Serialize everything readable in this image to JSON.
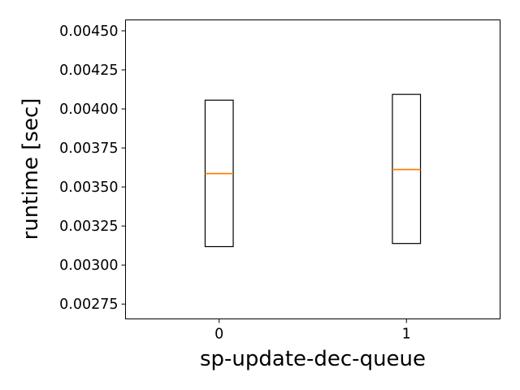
{
  "chart_data": {
    "type": "box",
    "title": "",
    "xlabel": "sp-update-dec-queue",
    "ylabel": "runtime [sec]",
    "categories": [
      "0",
      "1"
    ],
    "boxes": [
      {
        "category": "0",
        "q1": 0.003118,
        "median": 0.003586,
        "q3": 0.004056
      },
      {
        "category": "1",
        "q1": 0.003138,
        "median": 0.003612,
        "q3": 0.004093
      }
    ],
    "ylim": [
      0.002655,
      0.00457
    ],
    "yticks": [
      0.00275,
      0.003,
      0.00325,
      0.0035,
      0.00375,
      0.004,
      0.00425,
      0.0045
    ],
    "ytick_labels": [
      "0.00275",
      "0.00300",
      "0.00325",
      "0.00350",
      "0.00375",
      "0.00400",
      "0.00425",
      "0.00450"
    ],
    "xlim": [
      -0.5,
      1.5
    ],
    "grid": false,
    "colors": {
      "box": "#000000",
      "median": "#ff7f0e",
      "axes": "#000000",
      "background": "#ffffff"
    }
  }
}
